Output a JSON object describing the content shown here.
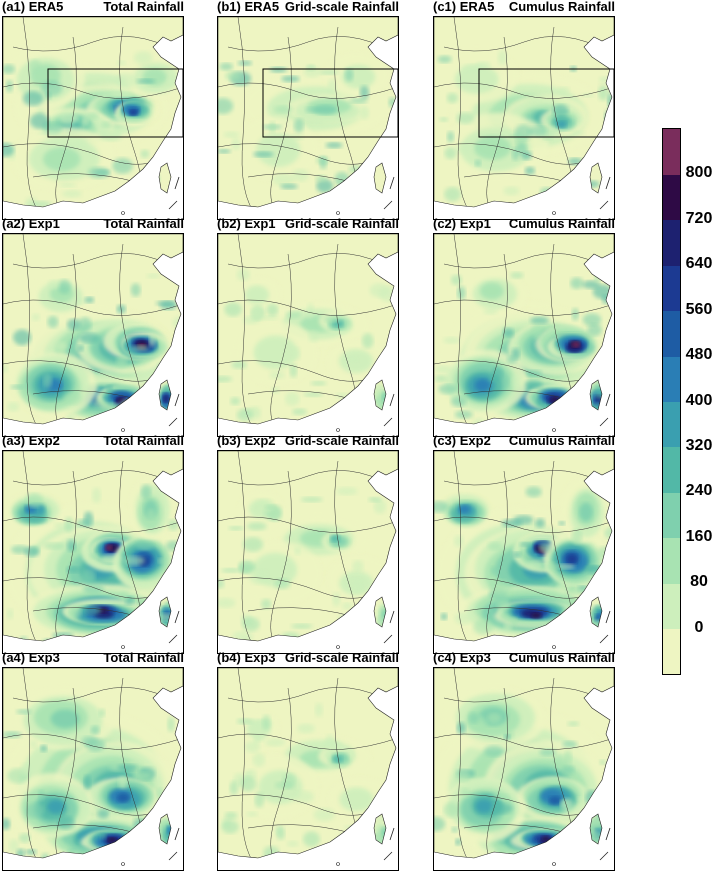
{
  "colors": {
    "levels": [
      "#eef5c2",
      "#cdefbc",
      "#a8e3b2",
      "#7fd0ae",
      "#52b8a7",
      "#3a9fb0",
      "#2a7eb5",
      "#1e5ca4",
      "#1c3a92",
      "#1d2170",
      "#2e0a45",
      "#7a2d5c"
    ],
    "land": "#eef5c2",
    "ocean": "#ffffff",
    "box": "#000000"
  },
  "colorbar": {
    "labels": [
      "800",
      "720",
      "640",
      "560",
      "480",
      "400",
      "320",
      "240",
      "160",
      "80",
      "0"
    ]
  },
  "panels": [
    {
      "id": "a1",
      "left": "(a1) ERA5",
      "right": "Total Rainfall",
      "pattern": "era5_total",
      "box": true
    },
    {
      "id": "b1",
      "left": "(b1) ERA5",
      "right": "Grid-scale Rainfall",
      "pattern": "era5_grid",
      "box": true
    },
    {
      "id": "c1",
      "left": "(c1) ERA5",
      "right": "Cumulus Rainfall",
      "pattern": "era5_cu",
      "box": true
    },
    {
      "id": "a2",
      "left": "(a2) Exp1",
      "right": "Total Rainfall",
      "pattern": "heavy",
      "box": false
    },
    {
      "id": "b2",
      "left": "(b2) Exp1",
      "right": "Grid-scale Rainfall",
      "pattern": "light",
      "box": false
    },
    {
      "id": "c2",
      "left": "(c2) Exp1",
      "right": "Cumulus Rainfall",
      "pattern": "heavy",
      "box": false
    },
    {
      "id": "a3",
      "left": "(a3) Exp2",
      "right": "Total Rainfall",
      "pattern": "heavy2",
      "box": false
    },
    {
      "id": "b3",
      "left": "(b3) Exp2",
      "right": "Grid-scale Rainfall",
      "pattern": "light",
      "box": false
    },
    {
      "id": "c3",
      "left": "(c3) Exp2",
      "right": "Cumulus Rainfall",
      "pattern": "heavy2",
      "box": false
    },
    {
      "id": "a4",
      "left": "(a4) Exp3",
      "right": "Total Rainfall",
      "pattern": "exp3",
      "box": false
    },
    {
      "id": "b4",
      "left": "(b4) Exp3",
      "right": "Grid-scale Rainfall",
      "pattern": "light",
      "box": false
    },
    {
      "id": "c4",
      "left": "(c4) Exp3",
      "right": "Cumulus Rainfall",
      "pattern": "exp3",
      "box": false
    }
  ]
}
